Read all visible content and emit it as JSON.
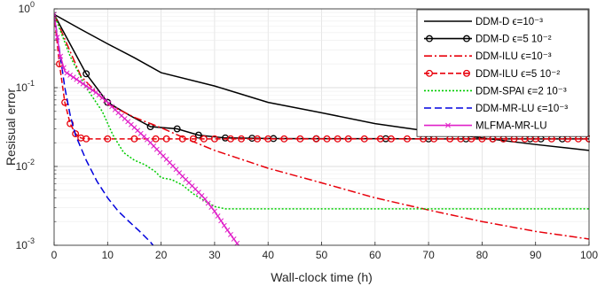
{
  "chart_data": {
    "type": "line",
    "xlabel": "Wall-clock time (h)",
    "ylabel": "Resisual error",
    "xlim": [
      0,
      100
    ],
    "ylim": [
      0.001,
      1
    ],
    "yscale": "log",
    "grid": true,
    "legend_position": "top-right",
    "x_ticks": [
      "0",
      "10",
      "20",
      "30",
      "40",
      "50",
      "60",
      "70",
      "80",
      "90",
      "100"
    ],
    "y_tick_labels": [
      {
        "base": "10",
        "exp": "0"
      },
      {
        "base": "10",
        "exp": "-1"
      },
      {
        "base": "10",
        "exp": "-2"
      },
      {
        "base": "10",
        "exp": "-3"
      }
    ],
    "series": [
      {
        "name": "DDM-D ϵ=10⁻³",
        "color": "#000000",
        "dash": "",
        "marker": "none",
        "points": [
          [
            0,
            0.85
          ],
          [
            5,
            0.55
          ],
          [
            10,
            0.36
          ],
          [
            15,
            0.24
          ],
          [
            20,
            0.155
          ],
          [
            30,
            0.105
          ],
          [
            40,
            0.065
          ],
          [
            50,
            0.048
          ],
          [
            60,
            0.035
          ],
          [
            70,
            0.028
          ],
          [
            80,
            0.023
          ],
          [
            90,
            0.019
          ],
          [
            100,
            0.016
          ]
        ]
      },
      {
        "name": "DDM-D ϵ=5 10⁻²",
        "color": "#000000",
        "dash": "",
        "marker": "circle",
        "points": [
          [
            0,
            0.85
          ],
          [
            6,
            0.15
          ],
          [
            10,
            0.065
          ],
          [
            14,
            0.045
          ],
          [
            18,
            0.032
          ],
          [
            23,
            0.03
          ],
          [
            27,
            0.025
          ],
          [
            32,
            0.023
          ],
          [
            37,
            0.0228
          ],
          [
            41,
            0.0226
          ],
          [
            49,
            0.0225
          ],
          [
            62,
            0.0225
          ],
          [
            70,
            0.0224
          ],
          [
            77,
            0.0224
          ],
          [
            82,
            0.0224
          ],
          [
            84,
            0.0224
          ],
          [
            89,
            0.0224
          ],
          [
            91,
            0.0224
          ],
          [
            95,
            0.0224
          ],
          [
            100,
            0.0224
          ]
        ],
        "marker_x": [
          6,
          10,
          18,
          23,
          27,
          32,
          37,
          41,
          49,
          62,
          70,
          77,
          82,
          84,
          89,
          91,
          95,
          100
        ]
      },
      {
        "name": "DDM-ILU ϵ=10⁻³",
        "color": "#e8000b",
        "dash": "9,3,2,3",
        "marker": "none",
        "points": [
          [
            0,
            0.85
          ],
          [
            5,
            0.14
          ],
          [
            10,
            0.062
          ],
          [
            15,
            0.042
          ],
          [
            20,
            0.031
          ],
          [
            25,
            0.022
          ],
          [
            30,
            0.016
          ],
          [
            40,
            0.0095
          ],
          [
            50,
            0.0062
          ],
          [
            60,
            0.004
          ],
          [
            70,
            0.0028
          ],
          [
            80,
            0.002
          ],
          [
            90,
            0.0015
          ],
          [
            100,
            0.0012
          ]
        ]
      },
      {
        "name": "DDM-ILU ϵ=5 10⁻²",
        "color": "#e8000b",
        "dash": "6,3",
        "marker": "circle",
        "points": [
          [
            0,
            0.85
          ],
          [
            1,
            0.2
          ],
          [
            2,
            0.065
          ],
          [
            3,
            0.035
          ],
          [
            4,
            0.026
          ],
          [
            5,
            0.023
          ],
          [
            6,
            0.0224
          ],
          [
            100,
            0.0224
          ]
        ],
        "marker_x": [
          1,
          2,
          3,
          4,
          5,
          6,
          10,
          15,
          19,
          21,
          24,
          26,
          28,
          30,
          33,
          35,
          38,
          40,
          43,
          46,
          49,
          51,
          53,
          55,
          58,
          61,
          63,
          66,
          69,
          71,
          74,
          76,
          78,
          80,
          82,
          84,
          86,
          88,
          90,
          93,
          96,
          98,
          100
        ]
      },
      {
        "name": "DDM-SPAI ϵ=2 10⁻³",
        "color": "#00cc00",
        "dash": "2,2",
        "marker": "none",
        "points": [
          [
            0,
            0.85
          ],
          [
            3,
            0.25
          ],
          [
            6,
            0.1
          ],
          [
            9,
            0.05
          ],
          [
            11,
            0.025
          ],
          [
            13,
            0.015
          ],
          [
            15,
            0.012
          ],
          [
            17,
            0.0105
          ],
          [
            19,
            0.0085
          ],
          [
            20,
            0.0072
          ],
          [
            22,
            0.0068
          ],
          [
            24,
            0.0058
          ],
          [
            26,
            0.0045
          ],
          [
            28,
            0.0037
          ],
          [
            30,
            0.0031
          ],
          [
            32,
            0.0029
          ],
          [
            100,
            0.0029
          ]
        ]
      },
      {
        "name": "DDM-MR-LU ϵ=10⁻³",
        "color": "#0000dd",
        "dash": "8,4",
        "marker": "none",
        "points": [
          [
            0,
            0.85
          ],
          [
            1,
            0.3
          ],
          [
            2,
            0.1
          ],
          [
            3,
            0.045
          ],
          [
            4,
            0.025
          ],
          [
            6,
            0.012
          ],
          [
            8,
            0.0065
          ],
          [
            10,
            0.004
          ],
          [
            12,
            0.0027
          ],
          [
            14,
            0.002
          ],
          [
            16,
            0.0015
          ],
          [
            18,
            0.0011
          ],
          [
            18.5,
            0.001
          ]
        ]
      },
      {
        "name": "MLFMA-MR-LU",
        "color": "#e020c8",
        "dash": "",
        "marker": "x",
        "points": [
          [
            0,
            0.85
          ],
          [
            1,
            0.28
          ],
          [
            2,
            0.16
          ],
          [
            4,
            0.13
          ],
          [
            6,
            0.105
          ],
          [
            8,
            0.085
          ],
          [
            10,
            0.065
          ],
          [
            12,
            0.048
          ],
          [
            14,
            0.036
          ],
          [
            16,
            0.027
          ],
          [
            18,
            0.02
          ],
          [
            20,
            0.0145
          ],
          [
            22,
            0.0105
          ],
          [
            24,
            0.0075
          ],
          [
            26,
            0.0055
          ],
          [
            28,
            0.004
          ],
          [
            30,
            0.0027
          ],
          [
            32,
            0.0017
          ],
          [
            34,
            0.0011
          ],
          [
            34.5,
            0.001
          ]
        ],
        "marker_every": 0.6
      }
    ]
  }
}
